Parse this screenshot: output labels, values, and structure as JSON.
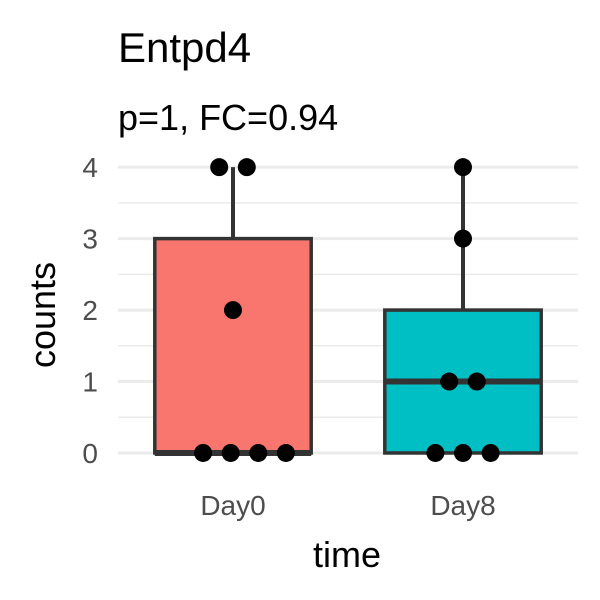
{
  "chart_data": {
    "type": "box",
    "title": "Entpd4",
    "subtitle": "p=1, FC=0.94",
    "xlabel": "time",
    "ylabel": "counts",
    "categories": [
      "Day0",
      "Day8"
    ],
    "ylim": [
      -0.35,
      4.1
    ],
    "yticks": [
      0,
      1,
      2,
      3,
      4
    ],
    "yminor": [
      0.5,
      1.5,
      2.5,
      3.5
    ],
    "grid": true,
    "legend": "none",
    "colors": [
      "#F8766D",
      "#00BFC4"
    ],
    "boxes": [
      {
        "category": "Day0",
        "min": 0,
        "q1": 0,
        "median": 0,
        "q3": 3,
        "max": 4
      },
      {
        "category": "Day8",
        "min": 0,
        "q1": 0,
        "median": 1,
        "q3": 2,
        "max": 4
      }
    ],
    "points": [
      {
        "category": "Day0",
        "y": 4,
        "jitter": -0.06
      },
      {
        "category": "Day0",
        "y": 4,
        "jitter": 0.06
      },
      {
        "category": "Day0",
        "y": 2,
        "jitter": 0
      },
      {
        "category": "Day0",
        "y": 0,
        "jitter": -0.13
      },
      {
        "category": "Day0",
        "y": 0,
        "jitter": -0.01
      },
      {
        "category": "Day0",
        "y": 0,
        "jitter": 0.11
      },
      {
        "category": "Day0",
        "y": 0,
        "jitter": 0.23
      },
      {
        "category": "Day8",
        "y": 4,
        "jitter": 0
      },
      {
        "category": "Day8",
        "y": 3,
        "jitter": 0
      },
      {
        "category": "Day8",
        "y": 1,
        "jitter": -0.06
      },
      {
        "category": "Day8",
        "y": 1,
        "jitter": 0.06
      },
      {
        "category": "Day8",
        "y": 0,
        "jitter": -0.12
      },
      {
        "category": "Day8",
        "y": 0,
        "jitter": 0
      },
      {
        "category": "Day8",
        "y": 0,
        "jitter": 0.12
      }
    ]
  }
}
